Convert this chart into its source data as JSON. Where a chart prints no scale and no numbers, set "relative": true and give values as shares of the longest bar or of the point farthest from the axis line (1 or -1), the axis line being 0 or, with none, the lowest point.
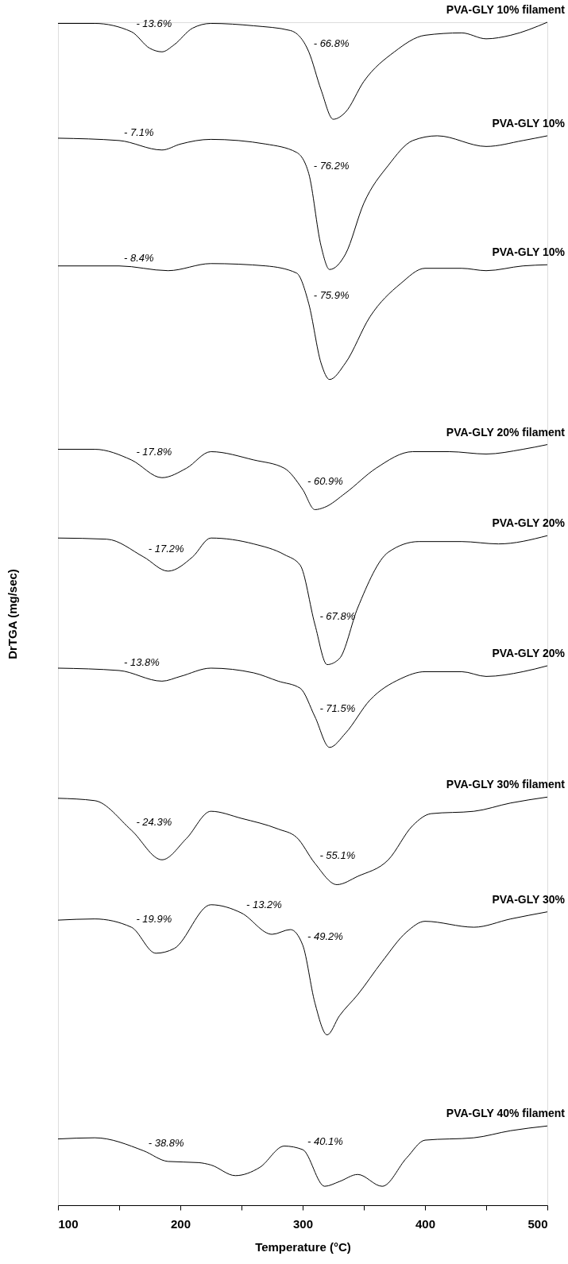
{
  "chart_data": {
    "type": "line",
    "relative": true,
    "xlabel": "Temperature (°C)",
    "ylabel": "DrTGA (mg/sec)",
    "xlim": [
      100,
      500
    ],
    "xticks": [
      100,
      {
        "value": 150,
        "label": null
      },
      200,
      {
        "value": 250,
        "label": null
      },
      300,
      {
        "value": 350,
        "label": null
      },
      400,
      {
        "value": 450,
        "label": null
      },
      500
    ],
    "tick_labels": "x",
    "grid": false,
    "marker": "none",
    "line_style": "solid",
    "series": [
      {
        "name": "PVA-GLY 10% filament",
        "color": "#000000",
        "x": [
          100,
          130,
          160,
          175,
          185,
          195,
          210,
          225,
          260,
          290,
          305,
          315,
          325,
          335,
          350,
          375,
          400,
          430,
          450,
          470,
          500
        ],
        "values": [
          0.999,
          0.999,
          0.992,
          0.978,
          0.975,
          0.981,
          0.995,
          0.999,
          0.997,
          0.993,
          0.975,
          0.943,
          0.918,
          0.924,
          0.95,
          0.975,
          0.989,
          0.991,
          0.986,
          0.989,
          1.0
        ]
      },
      {
        "name": "PVA-GLY 10%",
        "color": "#000000",
        "x": [
          100,
          150,
          185,
          200,
          225,
          270,
          295,
          305,
          315,
          322,
          335,
          350,
          370,
          390,
          410,
          450,
          480,
          500
        ],
        "values": [
          0.902,
          0.9,
          0.892,
          0.897,
          0.901,
          0.897,
          0.89,
          0.872,
          0.811,
          0.791,
          0.804,
          0.847,
          0.879,
          0.9,
          0.904,
          0.895,
          0.9,
          0.904
        ]
      },
      {
        "name": "PVA-GLY 10%",
        "color": "#000000",
        "x": [
          100,
          150,
          190,
          225,
          270,
          295,
          305,
          315,
          322,
          335,
          355,
          380,
          400,
          430,
          450,
          480,
          500
        ],
        "values": [
          0.794,
          0.794,
          0.79,
          0.796,
          0.794,
          0.788,
          0.762,
          0.712,
          0.698,
          0.712,
          0.751,
          0.779,
          0.792,
          0.792,
          0.79,
          0.794,
          0.795
        ]
      },
      {
        "name": "PVA-GLY 20% filament",
        "color": "#000000",
        "x": [
          100,
          130,
          160,
          185,
          205,
          225,
          260,
          285,
          300,
          310,
          318,
          335,
          360,
          390,
          420,
          450,
          480,
          500
        ],
        "values": [
          0.639,
          0.639,
          0.63,
          0.615,
          0.623,
          0.637,
          0.63,
          0.623,
          0.605,
          0.588,
          0.59,
          0.602,
          0.623,
          0.637,
          0.637,
          0.635,
          0.639,
          0.643
        ]
      },
      {
        "name": "PVA-GLY 20%",
        "color": "#000000",
        "x": [
          100,
          140,
          170,
          190,
          210,
          225,
          260,
          285,
          298,
          310,
          320,
          330,
          345,
          370,
          395,
          430,
          460,
          500
        ],
        "values": [
          0.564,
          0.563,
          0.548,
          0.536,
          0.548,
          0.564,
          0.559,
          0.55,
          0.541,
          0.491,
          0.457,
          0.462,
          0.505,
          0.552,
          0.561,
          0.561,
          0.559,
          0.566
        ]
      },
      {
        "name": "PVA-GLY 20%",
        "color": "#000000",
        "x": [
          100,
          150,
          185,
          200,
          225,
          260,
          280,
          298,
          310,
          322,
          335,
          355,
          380,
          400,
          430,
          450,
          480,
          500
        ],
        "values": [
          0.454,
          0.452,
          0.443,
          0.447,
          0.454,
          0.45,
          0.443,
          0.437,
          0.413,
          0.387,
          0.399,
          0.427,
          0.445,
          0.451,
          0.451,
          0.447,
          0.451,
          0.456
        ]
      },
      {
        "name": "PVA-GLY 30% filament",
        "color": "#000000",
        "x": [
          100,
          130,
          160,
          185,
          205,
          225,
          250,
          280,
          295,
          310,
          328,
          345,
          370,
          390,
          405,
          440,
          470,
          500
        ],
        "values": [
          0.344,
          0.342,
          0.317,
          0.292,
          0.31,
          0.333,
          0.327,
          0.318,
          0.311,
          0.289,
          0.271,
          0.278,
          0.292,
          0.321,
          0.331,
          0.333,
          0.34,
          0.345
        ]
      },
      {
        "name": "PVA-GLY 30%",
        "color": "#000000",
        "x": [
          100,
          130,
          160,
          180,
          195,
          225,
          250,
          275,
          290,
          300,
          310,
          320,
          330,
          345,
          365,
          385,
          400,
          440,
          470,
          500
        ],
        "values": [
          0.241,
          0.242,
          0.235,
          0.213,
          0.217,
          0.254,
          0.247,
          0.229,
          0.233,
          0.22,
          0.171,
          0.144,
          0.16,
          0.178,
          0.206,
          0.231,
          0.24,
          0.235,
          0.242,
          0.248
        ]
      },
      {
        "name": "PVA-GLY 40% filament",
        "color": "#000000",
        "x": [
          100,
          130,
          170,
          190,
          215,
          225,
          245,
          265,
          285,
          300,
          318,
          330,
          345,
          365,
          385,
          400,
          440,
          470,
          500
        ],
        "values": [
          0.056,
          0.057,
          0.046,
          0.037,
          0.036,
          0.034,
          0.025,
          0.032,
          0.05,
          0.047,
          0.016,
          0.02,
          0.026,
          0.016,
          0.04,
          0.055,
          0.057,
          0.063,
          0.067
        ]
      }
    ],
    "annotations": [
      {
        "text": "- 13.6%",
        "x": 160,
        "y": 0.992
      },
      {
        "text": "- 66.8%",
        "x": 305,
        "y": 0.975
      },
      {
        "text": "- 7.1%",
        "x": 150,
        "y": 0.9
      },
      {
        "text": "- 76.2%",
        "x": 305,
        "y": 0.872
      },
      {
        "text": "- 8.4%",
        "x": 150,
        "y": 0.794
      },
      {
        "text": "- 75.9%",
        "x": 305,
        "y": 0.762
      },
      {
        "text": "- 17.8%",
        "x": 160,
        "y": 0.63
      },
      {
        "text": "- 60.9%",
        "x": 300,
        "y": 0.605
      },
      {
        "text": "- 17.2%",
        "x": 170,
        "y": 0.548
      },
      {
        "text": "- 67.8%",
        "x": 310,
        "y": 0.491
      },
      {
        "text": "- 13.8%",
        "x": 150,
        "y": 0.452
      },
      {
        "text": "- 71.5%",
        "x": 310,
        "y": 0.413
      },
      {
        "text": "- 24.3%",
        "x": 160,
        "y": 0.317
      },
      {
        "text": "- 55.1%",
        "x": 310,
        "y": 0.289
      },
      {
        "text": "- 19.9%",
        "x": 160,
        "y": 0.235
      },
      {
        "text": "- 13.2%",
        "x": 250,
        "y": 0.247
      },
      {
        "text": "- 49.2%",
        "x": 300,
        "y": 0.22
      },
      {
        "text": "- 38.8%",
        "x": 170,
        "y": 0.046
      },
      {
        "text": "- 40.1%",
        "x": 300,
        "y": 0.047
      }
    ]
  }
}
